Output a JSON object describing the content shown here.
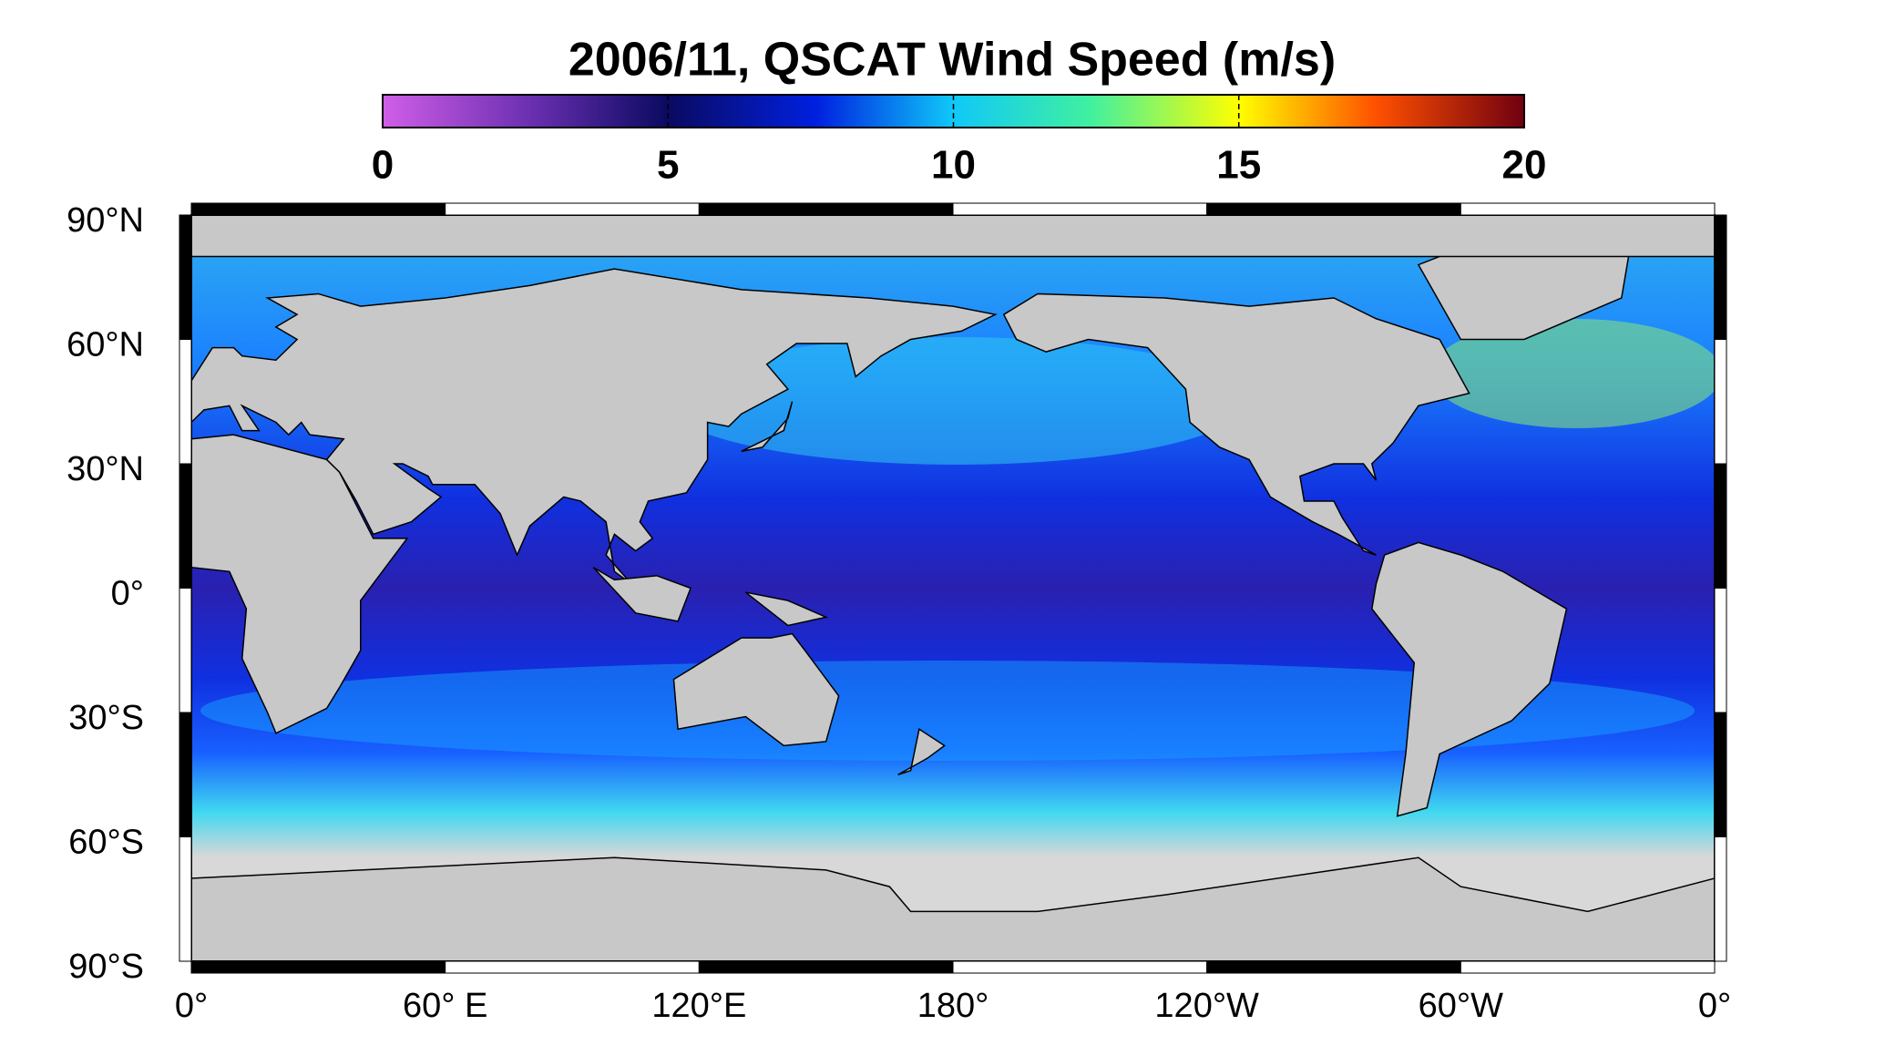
{
  "title": "2006/11,  QSCAT Wind Speed (m/s)",
  "colorbar": {
    "lim": [
      0,
      20
    ],
    "ticks": [
      0,
      5,
      10,
      15,
      20
    ]
  },
  "lat_labels": [
    "90°N",
    "60°N",
    "30°N",
    "0°",
    "30°S",
    "60°S",
    "90°S"
  ],
  "lon_labels": [
    "0°",
    "60° E",
    "120°E",
    "180°",
    "120°W",
    "60°W",
    "0°"
  ]
}
